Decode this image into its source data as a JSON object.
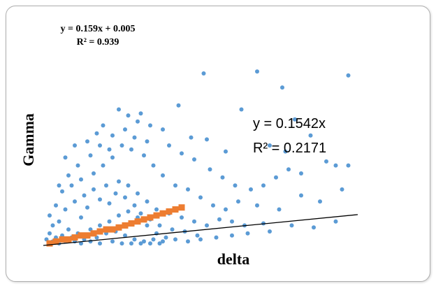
{
  "chart_data": {
    "type": "scatter",
    "xlabel": "delta",
    "ylabel": "Gamma",
    "xlim": [
      0,
      1
    ],
    "ylim": [
      0,
      1
    ],
    "grid": false,
    "colors": {
      "scatter_blue": "#5b9bd5",
      "binned_orange": "#ed7d31",
      "trendline": "#000000"
    },
    "annotations": {
      "fit_orange_line1": "y = 0.159x + 0.005",
      "fit_orange_line2": "R² = 0.939",
      "fit_blue_line1": "y = 0.1542x",
      "fit_blue_line2": "R² = 0.2171"
    },
    "trendline": {
      "slope": 0.1542,
      "intercept": 0
    },
    "series": [
      {
        "marker": "circle",
        "color": "#5b9bd5",
        "points": [
          [
            0.51,
            0.86
          ],
          [
            0.68,
            0.87
          ],
          [
            0.97,
            0.85
          ],
          [
            0.76,
            0.79
          ],
          [
            0.8,
            0.63
          ],
          [
            0.63,
            0.68
          ],
          [
            0.43,
            0.7
          ],
          [
            0.3,
            0.62
          ],
          [
            0.38,
            0.58
          ],
          [
            0.47,
            0.54
          ],
          [
            0.52,
            0.53
          ],
          [
            0.58,
            0.47
          ],
          [
            0.72,
            0.5
          ],
          [
            0.77,
            0.47
          ],
          [
            0.85,
            0.55
          ],
          [
            0.9,
            0.42
          ],
          [
            0.93,
            0.4
          ],
          [
            0.97,
            0.4
          ],
          [
            0.95,
            0.28
          ],
          [
            0.88,
            0.22
          ],
          [
            0.82,
            0.25
          ],
          [
            0.75,
            0.18
          ],
          [
            0.68,
            0.2
          ],
          [
            0.62,
            0.22
          ],
          [
            0.58,
            0.18
          ],
          [
            0.54,
            0.2
          ],
          [
            0.5,
            0.24
          ],
          [
            0.46,
            0.28
          ],
          [
            0.42,
            0.3
          ],
          [
            0.38,
            0.35
          ],
          [
            0.35,
            0.4
          ],
          [
            0.32,
            0.45
          ],
          [
            0.28,
            0.48
          ],
          [
            0.25,
            0.5
          ],
          [
            0.22,
            0.44
          ],
          [
            0.19,
            0.4
          ],
          [
            0.16,
            0.36
          ],
          [
            0.12,
            0.33
          ],
          [
            0.09,
            0.3
          ],
          [
            0.06,
            0.27
          ],
          [
            0.04,
            0.2
          ],
          [
            0.02,
            0.15
          ],
          [
            0.03,
            0.1
          ],
          [
            0.05,
            0.12
          ],
          [
            0.07,
            0.18
          ],
          [
            0.1,
            0.22
          ],
          [
            0.13,
            0.25
          ],
          [
            0.16,
            0.28
          ],
          [
            0.2,
            0.3
          ],
          [
            0.24,
            0.32
          ],
          [
            0.27,
            0.3
          ],
          [
            0.3,
            0.26
          ],
          [
            0.33,
            0.22
          ],
          [
            0.36,
            0.18
          ],
          [
            0.4,
            0.16
          ],
          [
            0.44,
            0.14
          ],
          [
            0.48,
            0.12
          ],
          [
            0.52,
            0.1
          ],
          [
            0.56,
            0.13
          ],
          [
            0.6,
            0.12
          ],
          [
            0.64,
            0.1
          ],
          [
            0.7,
            0.11
          ],
          [
            0.79,
            0.1
          ],
          [
            0.86,
            0.09
          ],
          [
            0.93,
            0.12
          ],
          [
            0.12,
            0.14
          ],
          [
            0.14,
            0.19
          ],
          [
            0.18,
            0.23
          ],
          [
            0.21,
            0.21
          ],
          [
            0.23,
            0.26
          ],
          [
            0.26,
            0.24
          ],
          [
            0.29,
            0.2
          ],
          [
            0.31,
            0.16
          ],
          [
            0.34,
            0.13
          ],
          [
            0.37,
            0.1
          ],
          [
            0.41,
            0.08
          ],
          [
            0.45,
            0.07
          ],
          [
            0.49,
            0.05
          ],
          [
            0.11,
            0.06
          ],
          [
            0.15,
            0.08
          ],
          [
            0.18,
            0.1
          ],
          [
            0.21,
            0.12
          ],
          [
            0.24,
            0.15
          ],
          [
            0.27,
            0.17
          ],
          [
            0.3,
            0.14
          ],
          [
            0.33,
            0.1
          ],
          [
            0.36,
            0.06
          ],
          [
            0.39,
            0.04
          ],
          [
            0.08,
            0.08
          ],
          [
            0.06,
            0.05
          ],
          [
            0.04,
            0.04
          ],
          [
            0.09,
            0.04
          ],
          [
            0.13,
            0.03
          ],
          [
            0.17,
            0.04
          ],
          [
            0.2,
            0.06
          ],
          [
            0.23,
            0.07
          ],
          [
            0.26,
            0.05
          ],
          [
            0.29,
            0.03
          ],
          [
            0.32,
            0.02
          ],
          [
            0.35,
            0.03
          ],
          [
            0.38,
            0.02
          ],
          [
            0.42,
            0.03
          ],
          [
            0.46,
            0.02
          ],
          [
            0.5,
            0.03
          ],
          [
            0.55,
            0.04
          ],
          [
            0.6,
            0.05
          ],
          [
            0.65,
            0.06
          ],
          [
            0.72,
            0.07
          ],
          [
            0.19,
            0.6
          ],
          [
            0.22,
            0.55
          ],
          [
            0.26,
            0.58
          ],
          [
            0.29,
            0.54
          ],
          [
            0.33,
            0.52
          ],
          [
            0.27,
            0.65
          ],
          [
            0.24,
            0.68
          ],
          [
            0.31,
            0.66
          ],
          [
            0.34,
            0.6
          ],
          [
            0.4,
            0.5
          ],
          [
            0.44,
            0.46
          ],
          [
            0.48,
            0.43
          ],
          [
            0.53,
            0.38
          ],
          [
            0.57,
            0.34
          ],
          [
            0.61,
            0.3
          ],
          [
            0.66,
            0.28
          ],
          [
            0.7,
            0.3
          ],
          [
            0.74,
            0.34
          ],
          [
            0.78,
            0.38
          ],
          [
            0.82,
            0.36
          ],
          [
            0.15,
            0.45
          ],
          [
            0.18,
            0.5
          ],
          [
            0.21,
            0.48
          ],
          [
            0.11,
            0.4
          ],
          [
            0.08,
            0.35
          ],
          [
            0.05,
            0.3
          ],
          [
            0.14,
            0.52
          ],
          [
            0.17,
            0.56
          ],
          [
            0.1,
            0.5
          ],
          [
            0.07,
            0.44
          ],
          [
            0.02,
            0.06
          ],
          [
            0.01,
            0.03
          ],
          [
            0.03,
            0.02
          ],
          [
            0.05,
            0.01
          ],
          [
            0.07,
            0.02
          ],
          [
            0.1,
            0.02
          ],
          [
            0.12,
            0.01
          ],
          [
            0.15,
            0.02
          ],
          [
            0.18,
            0.01
          ],
          [
            0.22,
            0.02
          ],
          [
            0.25,
            0.01
          ],
          [
            0.28,
            0.01
          ],
          [
            0.31,
            0.01
          ],
          [
            0.34,
            0.01
          ],
          [
            0.37,
            0.01
          ]
        ]
      },
      {
        "marker": "square",
        "color": "#ed7d31",
        "points": [
          [
            0.02,
            0.01
          ],
          [
            0.04,
            0.02
          ],
          [
            0.06,
            0.03
          ],
          [
            0.08,
            0.03
          ],
          [
            0.1,
            0.04
          ],
          [
            0.12,
            0.05
          ],
          [
            0.14,
            0.05
          ],
          [
            0.16,
            0.06
          ],
          [
            0.18,
            0.07
          ],
          [
            0.2,
            0.08
          ],
          [
            0.22,
            0.08
          ],
          [
            0.24,
            0.09
          ],
          [
            0.26,
            0.1
          ],
          [
            0.28,
            0.11
          ],
          [
            0.3,
            0.12
          ],
          [
            0.32,
            0.13
          ],
          [
            0.34,
            0.14
          ],
          [
            0.36,
            0.15
          ],
          [
            0.38,
            0.16
          ],
          [
            0.4,
            0.17
          ],
          [
            0.42,
            0.18
          ],
          [
            0.44,
            0.19
          ]
        ]
      }
    ]
  }
}
